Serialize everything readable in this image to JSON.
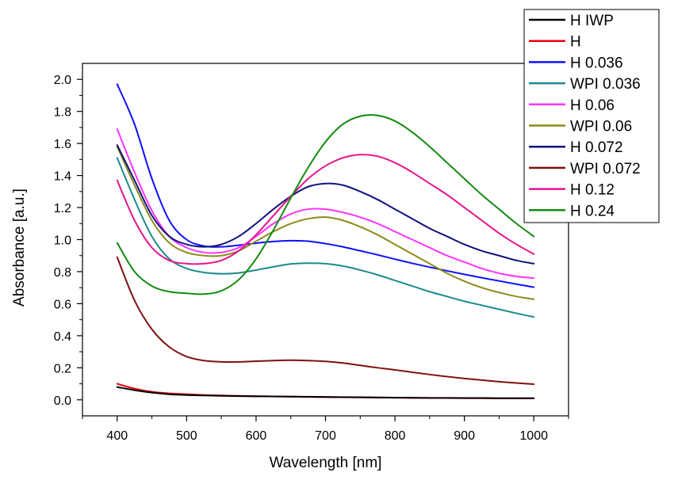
{
  "chart_data": {
    "type": "line",
    "xlabel": "Wavelength [nm]",
    "ylabel": "Absorbance [a.u.]",
    "xlim": [
      350,
      1050
    ],
    "ylim": [
      -0.1,
      2.1
    ],
    "xticks": [
      400,
      500,
      600,
      700,
      800,
      900,
      1000
    ],
    "yticks": [
      0.0,
      0.2,
      0.4,
      0.6,
      0.8,
      1.0,
      1.2,
      1.4,
      1.6,
      1.8,
      2.0
    ],
    "xtick_labels": [
      "400",
      "500",
      "600",
      "700",
      "800",
      "900",
      "1000"
    ],
    "ytick_labels": [
      "0.0",
      "0.2",
      "0.4",
      "0.6",
      "0.8",
      "1.0",
      "1.2",
      "1.4",
      "1.6",
      "1.8",
      "2.0"
    ],
    "legend_position": "top-right",
    "x": [
      400,
      425,
      450,
      475,
      500,
      525,
      550,
      575,
      600,
      625,
      650,
      675,
      700,
      725,
      750,
      775,
      800,
      825,
      850,
      875,
      900,
      925,
      950,
      975,
      1000
    ],
    "series": [
      {
        "name": "H IWP",
        "color": "#000000",
        "values": [
          0.08,
          0.06,
          0.045,
          0.035,
          0.03,
          0.027,
          0.025,
          0.023,
          0.022,
          0.021,
          0.02,
          0.019,
          0.018,
          0.017,
          0.016,
          0.015,
          0.014,
          0.013,
          0.012,
          0.012,
          0.011,
          0.011,
          0.01,
          0.01,
          0.01
        ]
      },
      {
        "name": "H",
        "color": "#e8000b",
        "values": [
          0.1,
          0.07,
          0.05,
          0.04,
          0.035,
          0.03,
          0.027,
          0.025,
          0.023,
          0.021,
          0.02,
          0.018,
          0.017,
          0.016,
          0.015,
          0.014,
          0.013,
          0.012,
          0.011,
          0.011,
          0.01,
          0.01,
          0.009,
          0.009,
          0.009
        ]
      },
      {
        "name": "H 0.036",
        "color": "#1010ff",
        "values": [
          1.97,
          1.72,
          1.38,
          1.12,
          1.0,
          0.96,
          0.955,
          0.965,
          0.978,
          0.988,
          0.993,
          0.99,
          0.975,
          0.955,
          0.93,
          0.905,
          0.878,
          0.852,
          0.828,
          0.805,
          0.783,
          0.762,
          0.742,
          0.722,
          0.703
        ]
      },
      {
        "name": "WPI 0.036",
        "color": "#1a8b8b",
        "values": [
          1.51,
          1.25,
          1.02,
          0.88,
          0.82,
          0.795,
          0.787,
          0.792,
          0.81,
          0.83,
          0.848,
          0.853,
          0.85,
          0.835,
          0.81,
          0.78,
          0.745,
          0.71,
          0.675,
          0.645,
          0.615,
          0.59,
          0.565,
          0.54,
          0.517
        ]
      },
      {
        "name": "H 0.06",
        "color": "#ff33ff",
        "values": [
          1.69,
          1.42,
          1.18,
          1.02,
          0.95,
          0.92,
          0.92,
          0.95,
          1.02,
          1.1,
          1.16,
          1.19,
          1.19,
          1.17,
          1.14,
          1.1,
          1.05,
          1.0,
          0.95,
          0.9,
          0.86,
          0.82,
          0.79,
          0.77,
          0.76
        ]
      },
      {
        "name": "WPI 0.06",
        "color": "#8b8b1a",
        "values": [
          1.58,
          1.34,
          1.12,
          0.98,
          0.92,
          0.9,
          0.9,
          0.93,
          0.99,
          1.05,
          1.1,
          1.13,
          1.14,
          1.12,
          1.08,
          1.03,
          0.97,
          0.91,
          0.85,
          0.79,
          0.74,
          0.7,
          0.67,
          0.645,
          0.628
        ]
      },
      {
        "name": "H 0.072",
        "color": "#11117f",
        "values": [
          1.59,
          1.37,
          1.15,
          1.02,
          0.97,
          0.955,
          0.97,
          1.02,
          1.1,
          1.19,
          1.27,
          1.33,
          1.35,
          1.34,
          1.3,
          1.25,
          1.19,
          1.13,
          1.07,
          1.02,
          0.97,
          0.93,
          0.9,
          0.87,
          0.85
        ]
      },
      {
        "name": "WPI 0.072",
        "color": "#7f1010",
        "values": [
          0.89,
          0.62,
          0.44,
          0.33,
          0.27,
          0.245,
          0.237,
          0.237,
          0.241,
          0.245,
          0.247,
          0.245,
          0.24,
          0.23,
          0.215,
          0.2,
          0.187,
          0.172,
          0.158,
          0.145,
          0.133,
          0.123,
          0.113,
          0.105,
          0.098
        ]
      },
      {
        "name": "H 0.12",
        "color": "#e6148c",
        "values": [
          1.37,
          1.12,
          0.95,
          0.87,
          0.85,
          0.85,
          0.87,
          0.93,
          1.03,
          1.15,
          1.27,
          1.38,
          1.46,
          1.51,
          1.53,
          1.52,
          1.48,
          1.42,
          1.35,
          1.28,
          1.2,
          1.12,
          1.04,
          0.97,
          0.91
        ]
      },
      {
        "name": "H 0.24",
        "color": "#118b11",
        "values": [
          0.98,
          0.8,
          0.71,
          0.675,
          0.665,
          0.66,
          0.68,
          0.75,
          0.88,
          1.06,
          1.26,
          1.45,
          1.61,
          1.72,
          1.77,
          1.775,
          1.74,
          1.67,
          1.58,
          1.48,
          1.38,
          1.28,
          1.19,
          1.1,
          1.02
        ]
      }
    ]
  }
}
